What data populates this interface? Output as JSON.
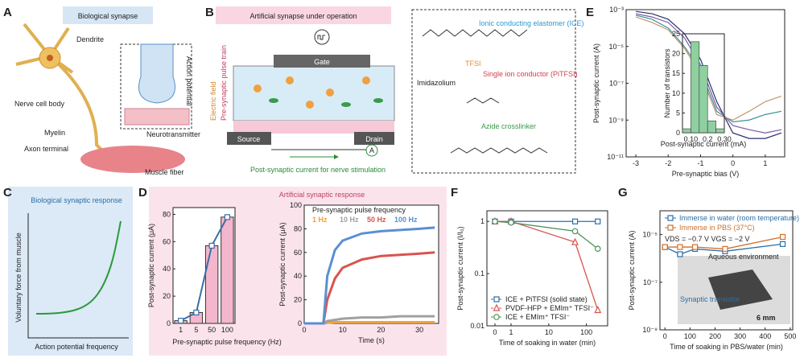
{
  "panels": {
    "A": {
      "label": "A",
      "title": "Biological synapse",
      "dendrite": "Dendrite",
      "cell_body": "Nerve cell body",
      "myelin": "Myelin",
      "axon_terminal": "Axon terminal",
      "muscle": "Muscle fiber",
      "neurotransmitter": "Neurotransmitter",
      "action_potential": "Action potential"
    },
    "B": {
      "label": "B",
      "title": "Artificial synapse under operation",
      "gate": "Gate",
      "source": "Source",
      "drain": "Drain",
      "ammeter": "A",
      "pulse_train": "Pre-synaptic pulse train",
      "field": "Electric field",
      "current": "Post-synaptic current for nerve stimulation",
      "ice": "Ionic conducting elastomer (ICE)",
      "tfsi": "TFSI",
      "imidazolium": "Imidazolium",
      "pitfsi": "Single ion conductor (PiTFSI)",
      "azide": "Azide crosslinker"
    },
    "C": {
      "label": "C",
      "title": "Biological synaptic response",
      "ylabel": "Voluntary force from muscle",
      "xlabel": "Action potential frequency"
    },
    "D": {
      "label": "D",
      "title": "Artificial synaptic response"
    },
    "E": {
      "label": "E"
    },
    "F": {
      "label": "F"
    },
    "G": {
      "label": "G",
      "water": "Aqueous environment",
      "transistor": "Synaptic transistor",
      "scale": "6 mm"
    }
  },
  "chart_data": [
    {
      "type": "bar",
      "categories": [
        "1",
        "5",
        "50",
        "100"
      ],
      "values": [
        2,
        8,
        57,
        78
      ],
      "color": "#f4b6cc",
      "line_color": "#3a6ea5",
      "xlabel": "Pre-synaptic pulse frequency (Hz)",
      "ylabel": "Post-synaptic current (μA)",
      "ylim": [
        0,
        85
      ],
      "yticks": [
        0,
        20,
        40,
        60,
        80
      ]
    },
    {
      "type": "line",
      "x": [
        0,
        4,
        5,
        6,
        8,
        10,
        15,
        20,
        25,
        30,
        34
      ],
      "series": [
        {
          "name": "1 Hz",
          "color": "#f0a040",
          "values": [
            0,
            0,
            0,
            0.5,
            1,
            1,
            1,
            1,
            1,
            1,
            1
          ]
        },
        {
          "name": "10 Hz",
          "color": "#a0a0a0",
          "values": [
            0,
            0,
            0,
            2,
            3,
            4,
            5,
            5,
            6,
            6,
            6
          ]
        },
        {
          "name": "50 Hz",
          "color": "#d9534f",
          "values": [
            0,
            0,
            0,
            20,
            38,
            47,
            54,
            57,
            58,
            59,
            60
          ]
        },
        {
          "name": "100 Hz",
          "color": "#5b8fd0",
          "values": [
            0,
            0,
            0,
            40,
            62,
            70,
            76,
            78,
            79,
            80,
            81
          ]
        }
      ],
      "legend_title": "Pre-synaptic pulse frequency",
      "xlabel": "Time (s)",
      "ylabel": "Post-synaptic current (μA)",
      "xlim": [
        0,
        35
      ],
      "ylim": [
        0,
        100
      ],
      "xticks": [
        0,
        10,
        20,
        30
      ],
      "yticks": [
        0,
        20,
        40,
        60,
        80,
        100
      ]
    },
    {
      "type": "line",
      "ylog": true,
      "x": [
        -3,
        -2.5,
        -2,
        -1.5,
        -1,
        -0.5,
        0,
        0.5,
        1,
        1.5
      ],
      "series": [
        {
          "color": "#2b2f6b",
          "values": [
            0.0008,
            0.0006,
            0.0003,
            5e-05,
            2e-06,
            1e-08,
            2e-10,
            1e-10,
            1e-10,
            2e-10
          ]
        },
        {
          "color": "#7a5aa6",
          "values": [
            0.0006,
            0.0004,
            0.0002,
            3e-05,
            1e-06,
            5e-09,
            5e-10,
            3e-10,
            2e-10,
            3e-10
          ]
        },
        {
          "color": "#3f8f9a",
          "values": [
            0.0005,
            0.0003,
            0.0001,
            1e-05,
            5e-07,
            3e-09,
            8e-10,
            1e-09,
            2e-09,
            3e-09
          ]
        },
        {
          "color": "#c0986a",
          "values": [
            0.0004,
            0.0002,
            8e-05,
            8e-06,
            3e-07,
            2e-09,
            1e-09,
            3e-09,
            1e-08,
            2e-08
          ]
        }
      ],
      "xlabel": "Pre-synaptic bias (V)",
      "ylabel": "Post-synaptic current (A)",
      "xlim": [
        -3.3,
        1.6
      ],
      "ylim": [
        1e-11,
        0.001
      ],
      "xticks": [
        -3,
        -2,
        -1,
        0,
        1
      ],
      "yticks": [
        {
          "value": 1e-11,
          "label": "10⁻¹¹"
        },
        {
          "value": 1e-09,
          "label": "10⁻⁹"
        },
        {
          "value": 1e-07,
          "label": "10⁻⁷"
        },
        {
          "value": 1e-05,
          "label": "10⁻⁵"
        },
        {
          "value": 0.001,
          "label": "10⁻³"
        }
      ]
    },
    {
      "type": "histogram",
      "bins": [
        0.05,
        0.1,
        0.15,
        0.2,
        0.25,
        0.3
      ],
      "values": [
        1,
        23,
        17,
        3,
        1
      ],
      "color": "#8fd0a0",
      "xlabel": "Post-synaptic current (mA)",
      "ylabel": "Number of transistors",
      "xlim": [
        0.05,
        0.3
      ],
      "ylim": [
        0,
        25
      ],
      "yticks": [
        0,
        5,
        10,
        15,
        20,
        25
      ],
      "xticks": [
        {
          "value": 0.1,
          "label": "0.10"
        },
        0.2,
        {
          "value": 0.3,
          "label": "0.30"
        }
      ]
    },
    {
      "type": "line",
      "ylog": true,
      "xlog": true,
      "series": [
        {
          "name": "ICE + PiTFSI (solid state)",
          "color": "#2a6fa8",
          "marker": "square",
          "x": [
            0,
            1,
            50,
            200
          ],
          "values": [
            1,
            1,
            1,
            1
          ]
        },
        {
          "name": "PVDF-HFP + EMIm⁺ TFSI⁻",
          "color": "#d9534f",
          "marker": "triangle",
          "x": [
            0,
            1,
            50,
            200
          ],
          "values": [
            1,
            1,
            0.4,
            0.02
          ]
        },
        {
          "name": "ICE + EMIm⁺ TFSI⁻",
          "color": "#4f8f5a",
          "marker": "circle",
          "x": [
            0,
            1,
            50,
            200
          ],
          "values": [
            1,
            0.95,
            0.65,
            0.3
          ]
        }
      ],
      "xlabel": "Time of soaking in water (min)",
      "ylabel": "Post-synaptic current (I/I₀)",
      "xlim": [
        0,
        300
      ],
      "ylim": [
        0.01,
        1.6
      ],
      "xticks": [
        0,
        1,
        10,
        100
      ],
      "yticks": [
        0.01,
        0.1,
        1
      ]
    },
    {
      "type": "line",
      "ylog": true,
      "series": [
        {
          "name": "Immerse in water (room temperature)",
          "color": "#2a6fa8",
          "marker": "square",
          "x": [
            0,
            60,
            120,
            240,
            470
          ],
          "values": [
            3e-06,
            1.5e-06,
            2.5e-06,
            2e-06,
            4e-06
          ]
        },
        {
          "name": "Immerse in PBS (37°C)",
          "color": "#d0702a",
          "marker": "square",
          "x": [
            0,
            60,
            120,
            240,
            470
          ],
          "values": [
            3e-06,
            3e-06,
            3e-06,
            2.5e-06,
            8e-06
          ]
        }
      ],
      "annotation": "VDS = −0.7 V   VGS = −2 V",
      "xlabel": "Time of soaking in PBS/water (min)",
      "ylabel": "Post-synaptic current (A)",
      "xlim": [
        -20,
        510
      ],
      "ylim": [
        1e-09,
        0.0001
      ],
      "xticks": [
        0,
        100,
        200,
        300,
        400,
        500
      ],
      "yticks": [
        {
          "value": 1e-09,
          "label": "10⁻⁹"
        },
        {
          "value": 1e-07,
          "label": "10⁻⁷"
        },
        {
          "value": 1e-05,
          "label": "10⁻⁵"
        }
      ]
    }
  ]
}
